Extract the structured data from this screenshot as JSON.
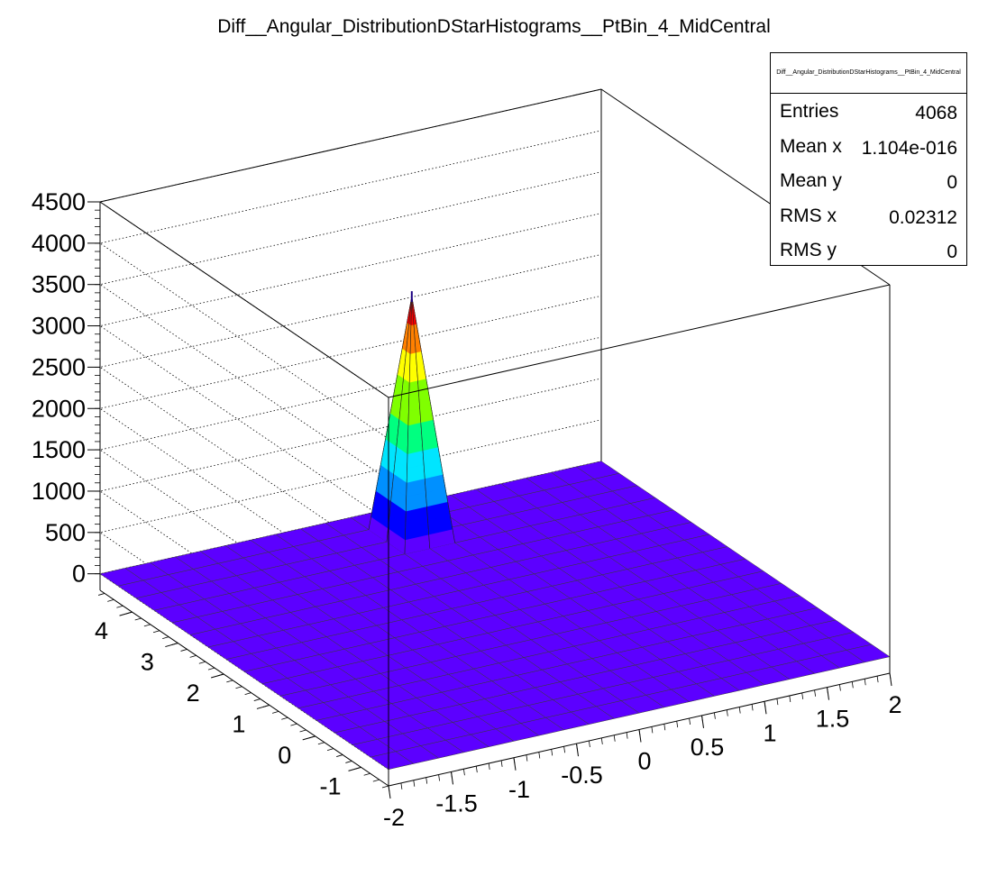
{
  "chart_data": {
    "type": "surface",
    "title": "Diff__Angular_DistributionDStarHistograms__PtBin_4_MidCentral",
    "xlabel": "",
    "ylabel": "",
    "zlabel": "",
    "xlim": [
      -2,
      2
    ],
    "ylim": [
      -1.6,
      4.7
    ],
    "zlim": [
      -200,
      4500
    ],
    "x_ticks": [
      "-2",
      "-1.5",
      "-1",
      "-0.5",
      "0",
      "0.5",
      "1",
      "1.5",
      "2"
    ],
    "y_ticks": [
      "-1",
      "0",
      "1",
      "2",
      "3",
      "4"
    ],
    "z_ticks": [
      "0",
      "500",
      "1000",
      "1500",
      "2000",
      "2500",
      "3000",
      "3500",
      "4000",
      "4500"
    ],
    "grid": "z-dotted",
    "surface": {
      "x_bins": 20,
      "y_bins": 16,
      "x_range": [
        -2,
        2
      ],
      "y_range": [
        -1.6,
        4.7
      ],
      "base_value": 0,
      "peak": {
        "x": 0.1,
        "y": 4.0,
        "value": 2900
      }
    },
    "colormap": [
      "#5c00ff",
      "#0000ff",
      "#0090ff",
      "#00e5ff",
      "#00ff80",
      "#80ff00",
      "#ffff00",
      "#ff8000",
      "#ff0000",
      "#7a1030",
      "#3000a0"
    ],
    "surface_color": "#5c00ff",
    "stats": {
      "title": "Diff__Angular_DistributionDStarHistograms__PtBin_4_MidCentral",
      "rows": [
        {
          "label": "Entries",
          "value": "4068"
        },
        {
          "label": "Mean x",
          "value": "1.104e-016"
        },
        {
          "label": "Mean y",
          "value": "0"
        },
        {
          "label": "RMS x",
          "value": "0.02312"
        },
        {
          "label": "RMS y",
          "value": "0"
        }
      ]
    }
  }
}
